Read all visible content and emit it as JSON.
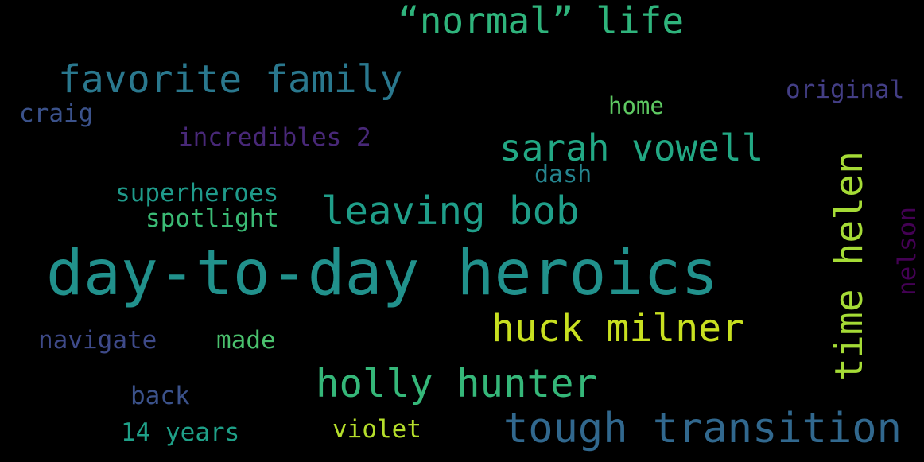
{
  "words": [
    {
      "id": "normal_life",
      "text": "“normal” life",
      "color": "#2fb47c"
    },
    {
      "id": "favorite_family",
      "text": "favorite family",
      "color": "#2a788e"
    },
    {
      "id": "original",
      "text": "original",
      "color": "#433e85"
    },
    {
      "id": "home",
      "text": "home",
      "color": "#5ec962"
    },
    {
      "id": "craig",
      "text": "craig",
      "color": "#3b528b"
    },
    {
      "id": "sarah_vowell",
      "text": "sarah vowell",
      "color": "#22a884"
    },
    {
      "id": "incredibles_2",
      "text": "incredibles 2",
      "color": "#482878"
    },
    {
      "id": "dash",
      "text": "dash",
      "color": "#25848e"
    },
    {
      "id": "superheroes",
      "text": "superheroes",
      "color": "#1f9a8a"
    },
    {
      "id": "leaving_bob",
      "text": "leaving bob",
      "color": "#1f9e89"
    },
    {
      "id": "spotlight",
      "text": "spotlight",
      "color": "#3bbb75"
    },
    {
      "id": "day_to_day_heroics",
      "text": "day-to-day heroics",
      "color": "#21918c"
    },
    {
      "id": "huck_milner",
      "text": "huck milner",
      "color": "#c8e020"
    },
    {
      "id": "navigate",
      "text": "navigate",
      "color": "#3e4a89"
    },
    {
      "id": "made",
      "text": "made",
      "color": "#4ac16d"
    },
    {
      "id": "holly_hunter",
      "text": "holly hunter",
      "color": "#35b779"
    },
    {
      "id": "back",
      "text": "back",
      "color": "#3b528b"
    },
    {
      "id": "tough_transition",
      "text": "tough transition",
      "color": "#31688e"
    },
    {
      "id": "violet",
      "text": "violet",
      "color": "#b5de2b"
    },
    {
      "id": "14_years",
      "text": "14 years",
      "color": "#1fa088"
    },
    {
      "id": "time_helen",
      "text": "time helen",
      "color": "#a5db36"
    },
    {
      "id": "nelson",
      "text": "nelson",
      "color": "#440154"
    }
  ],
  "background_color": "#000000"
}
